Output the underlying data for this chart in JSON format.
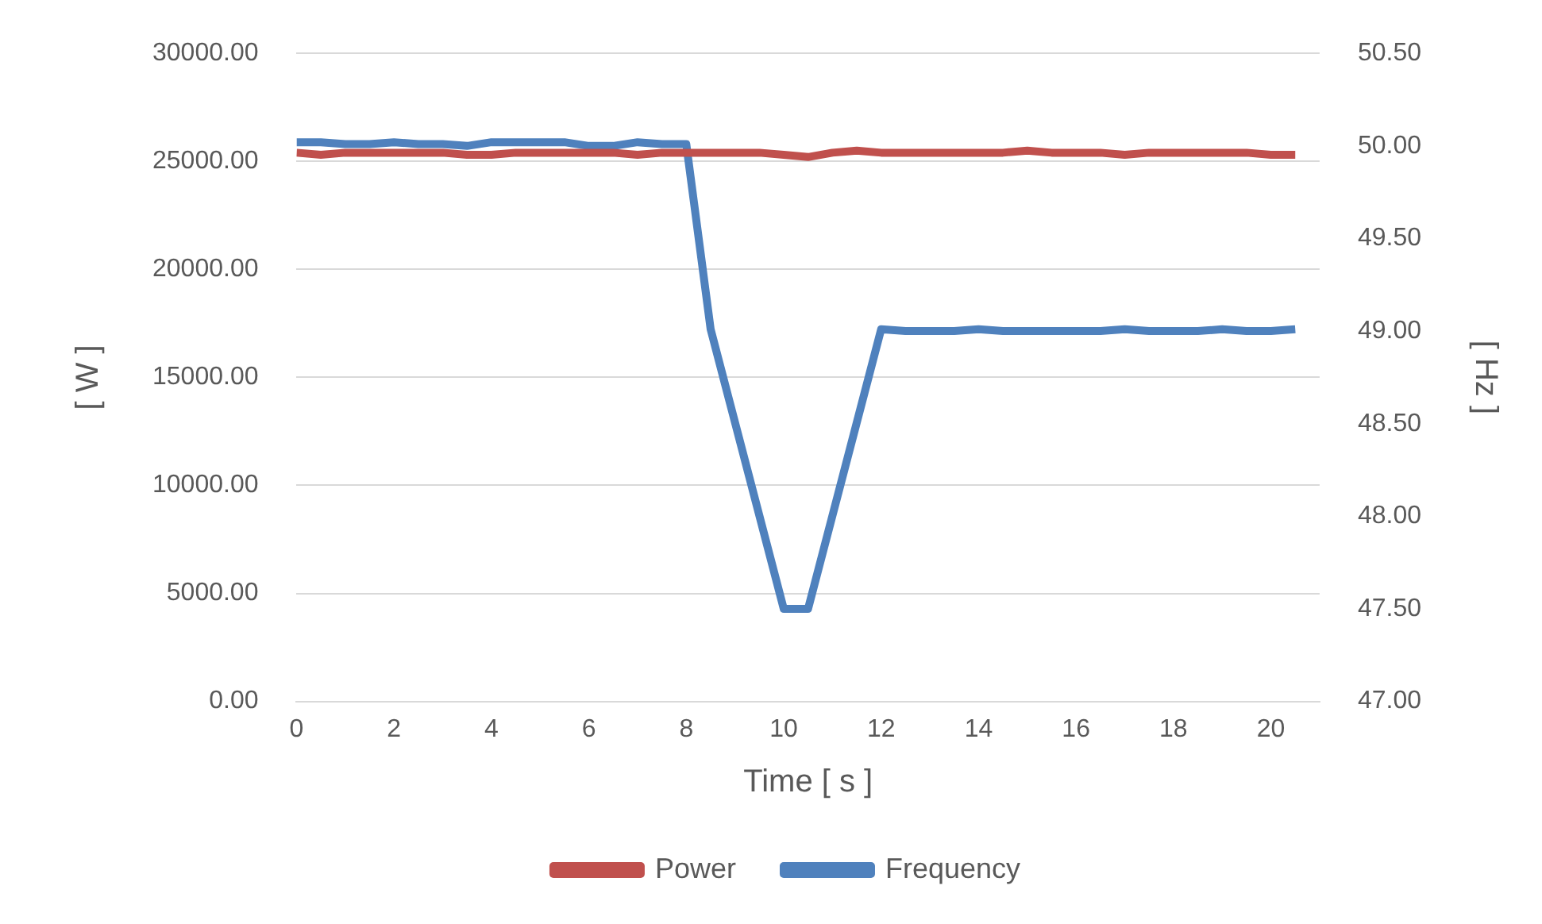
{
  "chart_data": {
    "type": "line",
    "xlabel": "Time [ s ]",
    "ylabel": "[ W ]",
    "y2label": "[ Hz ]",
    "x": [
      0,
      0.5,
      1,
      1.5,
      2,
      2.5,
      3,
      3.5,
      4,
      4.5,
      5,
      5.5,
      6,
      6.5,
      7,
      7.5,
      8,
      8.5,
      9,
      9.5,
      10,
      10.5,
      11,
      11.5,
      12,
      12.5,
      13,
      13.5,
      14,
      14.5,
      15,
      15.5,
      16,
      16.5,
      17,
      17.5,
      18,
      18.5,
      19,
      19.5,
      20,
      20.5
    ],
    "series": [
      {
        "name": "Power",
        "color": "#c0504d",
        "values": [
          25400,
          25300,
          25400,
          25400,
          25400,
          25400,
          25400,
          25300,
          25300,
          25400,
          25400,
          25400,
          25400,
          25400,
          25300,
          25400,
          25400,
          25400,
          25400,
          25400,
          25300,
          25200,
          25400,
          25500,
          25400,
          25400,
          25400,
          25400,
          25400,
          25400,
          25500,
          25400,
          25400,
          25400,
          25300,
          25400,
          25400,
          25400,
          25400,
          25400,
          25300,
          25300
        ]
      },
      {
        "name": "Frequency",
        "color": "#4f81bd",
        "axis": "y2",
        "values": [
          50.02,
          50.02,
          50.01,
          50.01,
          50.02,
          50.01,
          50.01,
          50.0,
          50.02,
          50.02,
          50.02,
          50.02,
          50.0,
          50.0,
          50.02,
          50.01,
          50.01,
          49.01,
          null,
          null,
          47.5,
          47.5,
          null,
          null,
          49.01,
          49.0,
          49.0,
          49.0,
          49.01,
          49.0,
          49.0,
          49.0,
          49.0,
          49.0,
          49.01,
          49.0,
          49.0,
          49.0,
          49.01,
          49.0,
          49.0,
          49.01
        ]
      }
    ],
    "xlim": [
      0,
      21
    ],
    "xticks": [
      0,
      2,
      4,
      6,
      8,
      10,
      12,
      14,
      16,
      18,
      20
    ],
    "ylim": [
      0,
      30000
    ],
    "yticks": [
      {
        "value": 0,
        "label": "0.00"
      },
      {
        "value": 5000,
        "label": "5000.00"
      },
      {
        "value": 10000,
        "label": "10000.00"
      },
      {
        "value": 15000,
        "label": "15000.00"
      },
      {
        "value": 20000,
        "label": "20000.00"
      },
      {
        "value": 25000,
        "label": "25000.00"
      },
      {
        "value": 30000,
        "label": "30000.00"
      }
    ],
    "y2lim": [
      47,
      50.5
    ],
    "y2ticks": [
      {
        "value": 47,
        "label": "47.00"
      },
      {
        "value": 47.5,
        "label": "47.50"
      },
      {
        "value": 48,
        "label": "48.00"
      },
      {
        "value": 48.5,
        "label": "48.50"
      },
      {
        "value": 49,
        "label": "49.00"
      },
      {
        "value": 49.5,
        "label": "49.50"
      },
      {
        "value": 50,
        "label": "50.00"
      },
      {
        "value": 50.5,
        "label": "50.50"
      }
    ],
    "grid": "y",
    "legend": "bottom",
    "marker": "none",
    "line_style": "solid"
  }
}
